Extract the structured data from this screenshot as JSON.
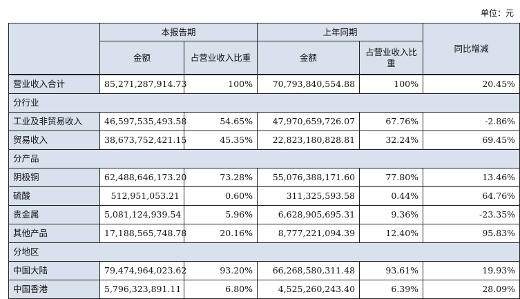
{
  "unit_label": "单位：元",
  "header": {
    "current_period": "本报告期",
    "prior_period": "上年同期",
    "amount": "金额",
    "share": "占营业收入比重",
    "change": "同比增减"
  },
  "rows": [
    {
      "type": "data",
      "label": "营业收入合计",
      "cur_amount": "85,271,287,914.73",
      "cur_share": "100%",
      "prev_amount": "70,793,840,554.88",
      "prev_share": "100%",
      "change": "20.45%"
    },
    {
      "type": "group",
      "label": "分行业"
    },
    {
      "type": "data",
      "label": "工业及非贸易收入",
      "cur_amount": "46,597,535,493.58",
      "cur_share": "54.65%",
      "prev_amount": "47,970,659,726.07",
      "prev_share": "67.76%",
      "change": "-2.86%"
    },
    {
      "type": "data",
      "label": "贸易收入",
      "cur_amount": "38,673,752,421.15",
      "cur_share": "45.35%",
      "prev_amount": "22,823,180,828.81",
      "prev_share": "32.24%",
      "change": "69.45%"
    },
    {
      "type": "group",
      "label": "分产品"
    },
    {
      "type": "data",
      "label": "阴极铜",
      "cur_amount": "62,488,646,173.20",
      "cur_share": "73.28%",
      "prev_amount": "55,076,388,171.60",
      "prev_share": "77.80%",
      "change": "13.46%"
    },
    {
      "type": "data",
      "label": "硫酸",
      "cur_amount": "512,951,053.21",
      "cur_share": "0.60%",
      "prev_amount": "311,325,593.58",
      "prev_share": "0.44%",
      "change": "64.76%"
    },
    {
      "type": "data",
      "label": "贵金属",
      "cur_amount": "5,081,124,939.54",
      "cur_share": "5.96%",
      "prev_amount": "6,628,905,695.31",
      "prev_share": "9.36%",
      "change": "-23.35%"
    },
    {
      "type": "data",
      "label": "其他产品",
      "cur_amount": "17,188,565,748.78",
      "cur_share": "20.16%",
      "prev_amount": "8,777,221,094.39",
      "prev_share": "12.40%",
      "change": "95.83%"
    },
    {
      "type": "group",
      "label": "分地区"
    },
    {
      "type": "data",
      "label": "中国大陆",
      "cur_amount": "79,474,964,023.62",
      "cur_share": "93.20%",
      "prev_amount": "66,268,580,311.48",
      "prev_share": "93.61%",
      "change": "19.93%"
    },
    {
      "type": "data",
      "label": "中国香港",
      "cur_amount": "5,796,323,891.11",
      "cur_share": "6.80%",
      "prev_amount": "4,525,260,243.40",
      "prev_share": "6.39%",
      "change": "28.09%"
    }
  ]
}
